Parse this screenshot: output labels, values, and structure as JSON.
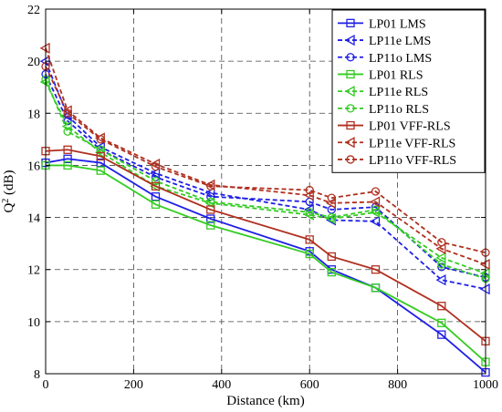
{
  "chart_data": {
    "type": "line",
    "xlabel": "Distance (km)",
    "ylabel_main": "Q",
    "ylabel_sup": "2",
    "ylabel_rest": " (dB)",
    "xlim": [
      0,
      1000
    ],
    "ylim": [
      8,
      22
    ],
    "xticks": [
      "0",
      "200",
      "400",
      "600",
      "800",
      "1000"
    ],
    "yticks": [
      "8",
      "10",
      "12",
      "14",
      "16",
      "18",
      "20",
      "22"
    ],
    "xtick_values": [
      0,
      200,
      400,
      600,
      800,
      1000
    ],
    "ytick_values": [
      8,
      10,
      12,
      14,
      16,
      18,
      20,
      22
    ],
    "grid": true,
    "legend_position": "top-right",
    "x": [
      0,
      50,
      125,
      250,
      375,
      600,
      650,
      750,
      900,
      1000
    ],
    "series": [
      {
        "name": "LP01 LMS",
        "color": "#1f1fe6",
        "dash": "solid",
        "marker": "square",
        "values": [
          16.1,
          16.25,
          16.1,
          14.8,
          13.95,
          12.7,
          12.0,
          11.3,
          9.5,
          8.05
        ]
      },
      {
        "name": "LP11e LMS",
        "color": "#1f1fe6",
        "dash": "dashed",
        "marker": "triangle-left",
        "values": [
          20.0,
          17.9,
          16.7,
          15.7,
          14.95,
          14.3,
          13.9,
          13.85,
          11.6,
          11.25
        ]
      },
      {
        "name": "LP11o LMS",
        "color": "#1f1fe6",
        "dash": "dashed",
        "marker": "circle",
        "values": [
          19.5,
          17.7,
          16.6,
          15.55,
          14.8,
          14.6,
          14.3,
          14.4,
          12.1,
          11.7
        ]
      },
      {
        "name": "LP01 RLS",
        "color": "#33cc22",
        "dash": "solid",
        "marker": "square",
        "values": [
          16.0,
          16.0,
          15.8,
          14.5,
          13.7,
          12.6,
          11.9,
          11.3,
          9.95,
          8.45
        ]
      },
      {
        "name": "LP11e RLS",
        "color": "#33cc22",
        "dash": "dashed",
        "marker": "triangle-left",
        "values": [
          19.2,
          17.5,
          16.5,
          15.2,
          14.55,
          14.1,
          13.95,
          14.2,
          12.45,
          11.85
        ]
      },
      {
        "name": "LP11o RLS",
        "color": "#33cc22",
        "dash": "dashed",
        "marker": "circle",
        "values": [
          19.3,
          17.3,
          16.6,
          15.4,
          14.6,
          14.2,
          14.0,
          14.3,
          12.2,
          11.65
        ]
      },
      {
        "name": "LP01 VFF-RLS",
        "color": "#b03020",
        "dash": "solid",
        "marker": "square",
        "values": [
          16.55,
          16.6,
          16.35,
          15.2,
          14.3,
          13.15,
          12.5,
          12.0,
          10.6,
          9.25
        ]
      },
      {
        "name": "LP11e VFF-RLS",
        "color": "#b03020",
        "dash": "dashed",
        "marker": "triangle-left",
        "values": [
          20.5,
          18.1,
          17.05,
          16.05,
          15.25,
          14.85,
          14.55,
          14.6,
          12.8,
          12.2
        ]
      },
      {
        "name": "LP11o VFF-RLS",
        "color": "#b03020",
        "dash": "dashed",
        "marker": "circle",
        "values": [
          19.8,
          18.0,
          17.0,
          15.95,
          15.2,
          15.05,
          14.75,
          15.0,
          13.05,
          12.65
        ]
      }
    ]
  }
}
